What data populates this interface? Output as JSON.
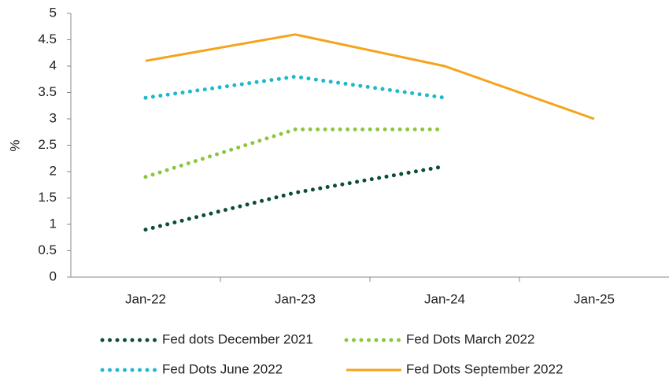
{
  "chart_data": {
    "type": "line",
    "y_label": "%",
    "categories": [
      "Jan-22",
      "Jan-23",
      "Jan-24",
      "Jan-25"
    ],
    "series": [
      {
        "name": "Fed dots December 2021",
        "color": "#0b4f2f",
        "line_style": "dotted",
        "values": [
          0.9,
          1.6,
          2.1,
          null
        ]
      },
      {
        "name": "Fed Dots March 2022",
        "color": "#8cc63f",
        "line_style": "dotted",
        "values": [
          1.9,
          2.8,
          2.8,
          null
        ]
      },
      {
        "name": "Fed Dots June 2022",
        "color": "#1fb8cc",
        "line_style": "dotted",
        "values": [
          3.4,
          3.8,
          3.4,
          null
        ]
      },
      {
        "name": "Fed Dots September 2022",
        "color": "#f5a31a",
        "line_style": "solid",
        "values": [
          4.1,
          4.6,
          4.0,
          3.0
        ]
      }
    ],
    "ylim": [
      0,
      5
    ],
    "yticks": [
      0,
      0.5,
      1,
      1.5,
      2,
      2.5,
      3,
      3.5,
      4,
      4.5,
      5
    ],
    "grid": false,
    "legend": "bottom"
  }
}
